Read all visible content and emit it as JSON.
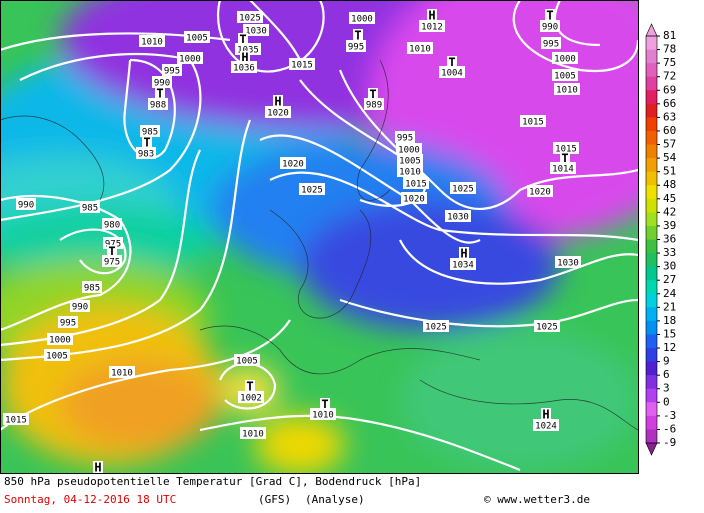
{
  "map": {
    "labels": [
      "1010",
      "1005",
      "1000",
      "995",
      "990",
      "T",
      "988",
      "985",
      "T",
      "983",
      "1025",
      "1030",
      "T",
      "1035",
      "H",
      "1036",
      "1015",
      "1000",
      "T",
      "995",
      "H",
      "1012",
      "1010",
      "T",
      "1004",
      "T",
      "990",
      "995",
      "1000",
      "1005",
      "1010",
      "T",
      "989",
      "H",
      "1020",
      "995",
      "1000",
      "1005",
      "1010",
      "1015",
      "1020",
      "1015",
      "1015",
      "T",
      "1014",
      "1020",
      "1025",
      "1025",
      "1020",
      "1030",
      "H",
      "1034",
      "1030",
      "990",
      "985",
      "980",
      "975",
      "T",
      "975",
      "985",
      "990",
      "995",
      "1000",
      "1005",
      "1010",
      "1015",
      "1005",
      "T",
      "1002",
      "T",
      "1010",
      "1010",
      "1025",
      "1025",
      "H",
      "1024",
      "H"
    ]
  },
  "colorbar": {
    "ticks": [
      81,
      78,
      75,
      72,
      69,
      66,
      63,
      60,
      57,
      54,
      51,
      48,
      45,
      42,
      39,
      36,
      33,
      30,
      27,
      24,
      21,
      18,
      15,
      12,
      9,
      6,
      3,
      0,
      -3,
      -6,
      -9
    ],
    "colors": [
      "#f0a0e0",
      "#e080d0",
      "#e060c0",
      "#e040a0",
      "#e02060",
      "#e02020",
      "#f04000",
      "#f06000",
      "#f08000",
      "#f0a000",
      "#f0c000",
      "#f0e000",
      "#d0e000",
      "#a0e020",
      "#70d030",
      "#40c040",
      "#20c060",
      "#00c890",
      "#00d8b0",
      "#00d0e0",
      "#00b0f0",
      "#0090f0",
      "#2060f0",
      "#3040e0",
      "#5020d0",
      "#8030e0",
      "#b040f0",
      "#e060f0",
      "#d040e0",
      "#b030c0",
      "#8a2090"
    ]
  },
  "footer": {
    "title": "850 hPa pseudopotentielle Temperatur [Grad C], Bodendruck [hPa]",
    "date": "Sonntag, 04-12-2016  18 UTC",
    "model": "(GFS)",
    "run": "(Analyse)",
    "credit": "© www.wetter3.de"
  }
}
